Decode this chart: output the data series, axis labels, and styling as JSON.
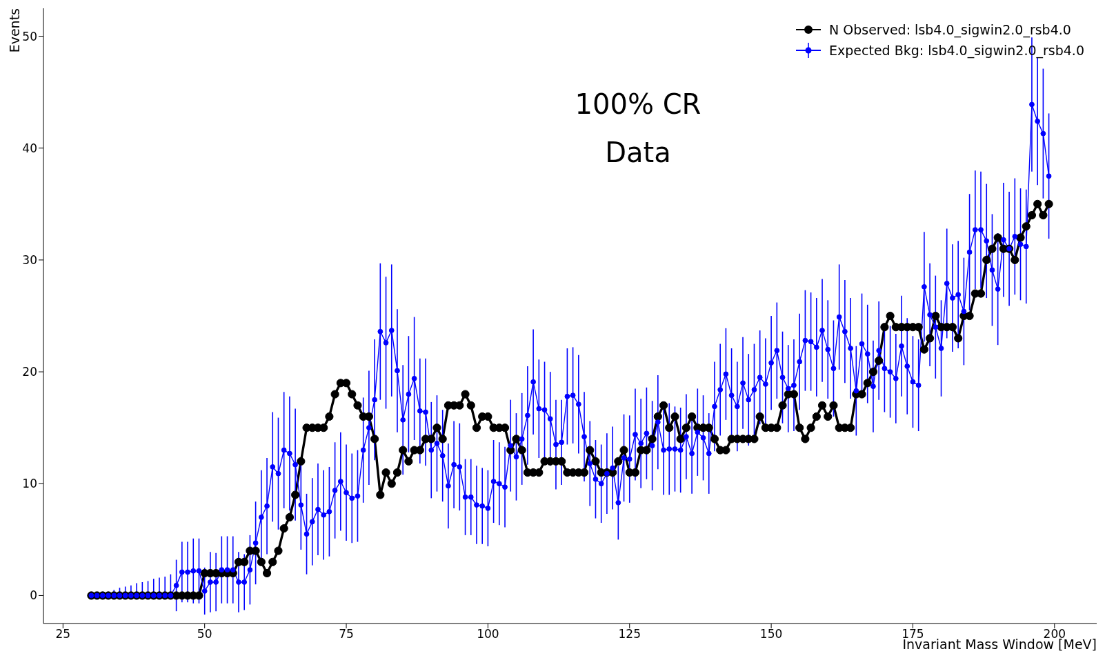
{
  "chart_data": {
    "type": "line",
    "xlabel": "Invariant Mass Window [MeV]",
    "ylabel": "Events",
    "annotations": [
      "100% CR",
      "Data"
    ],
    "x": [
      30,
      31,
      32,
      33,
      34,
      35,
      36,
      37,
      38,
      39,
      40,
      41,
      42,
      43,
      44,
      45,
      46,
      47,
      48,
      49,
      50,
      51,
      52,
      53,
      54,
      55,
      56,
      57,
      58,
      59,
      60,
      61,
      62,
      63,
      64,
      65,
      66,
      67,
      68,
      69,
      70,
      71,
      72,
      73,
      74,
      75,
      76,
      77,
      78,
      79,
      80,
      81,
      82,
      83,
      84,
      85,
      86,
      87,
      88,
      89,
      90,
      91,
      92,
      93,
      94,
      95,
      96,
      97,
      98,
      99,
      100,
      101,
      102,
      103,
      104,
      105,
      106,
      107,
      108,
      109,
      110,
      111,
      112,
      113,
      114,
      115,
      116,
      117,
      118,
      119,
      120,
      121,
      122,
      123,
      124,
      125,
      126,
      127,
      128,
      129,
      130,
      131,
      132,
      133,
      134,
      135,
      136,
      137,
      138,
      139,
      140,
      141,
      142,
      143,
      144,
      145,
      146,
      147,
      148,
      149,
      150,
      151,
      152,
      153,
      154,
      155,
      156,
      157,
      158,
      159,
      160,
      161,
      162,
      163,
      164,
      165,
      166,
      167,
      168,
      169,
      170,
      171,
      172,
      173,
      174,
      175,
      176,
      177,
      178,
      179,
      180,
      181,
      182,
      183,
      184,
      185,
      186,
      187,
      188,
      189,
      190,
      191,
      192,
      193,
      194,
      195,
      196,
      197,
      198,
      199
    ],
    "series": [
      {
        "name": "N Observed: lsb4.0_sigwin2.0_rsb4.0",
        "color": "#000000",
        "values": [
          0,
          0,
          0,
          0,
          0,
          0,
          0,
          0,
          0,
          0,
          0,
          0,
          0,
          0,
          0,
          0,
          0,
          0,
          0,
          0,
          2,
          2,
          2,
          2,
          2,
          2,
          3,
          3,
          4,
          4,
          3,
          2,
          3,
          4,
          6,
          7,
          9,
          12,
          15,
          15,
          15,
          15,
          16,
          18,
          19,
          19,
          18,
          17,
          16,
          16,
          14,
          9,
          11,
          10,
          11,
          13,
          12,
          13,
          13,
          14,
          14,
          15,
          14,
          17,
          17,
          17,
          18,
          17,
          15,
          16,
          16,
          15,
          15,
          15,
          13,
          14,
          13,
          11,
          11,
          11,
          12,
          12,
          12,
          12,
          11,
          11,
          11,
          11,
          13,
          12,
          11,
          11,
          11,
          12,
          13,
          11,
          11,
          13,
          13,
          14,
          16,
          17,
          15,
          16,
          14,
          15,
          16,
          15,
          15,
          15,
          14,
          13,
          13,
          14,
          14,
          14,
          14,
          14,
          16,
          15,
          15,
          15,
          17,
          18,
          18,
          15,
          14,
          15,
          16,
          17,
          16,
          17,
          15,
          15,
          15,
          18,
          18,
          19,
          20,
          21,
          24,
          25,
          24,
          24,
          24,
          24,
          24,
          22,
          23,
          25,
          24,
          24,
          24,
          23,
          25,
          25,
          27,
          27,
          30,
          31,
          32,
          31,
          31,
          30,
          32,
          33,
          34,
          35,
          34,
          35
        ]
      },
      {
        "name": "Expected Bkg: lsb4.0_sigwin2.0_rsb4.0",
        "color": "#0000ff",
        "values": [
          0,
          0,
          0,
          0,
          0,
          0,
          0,
          0,
          0,
          0,
          0,
          0,
          0,
          0,
          0,
          0.9,
          2.1,
          2.1,
          2.2,
          2.2,
          0.4,
          1.2,
          1.2,
          2.3,
          2.3,
          2.3,
          1.2,
          1.2,
          2.3,
          4.7,
          7.0,
          8.0,
          11.5,
          10.9,
          13.0,
          12.7,
          11.7,
          8.1,
          5.5,
          6.6,
          7.7,
          7.2,
          7.5,
          9.4,
          10.2,
          9.2,
          8.7,
          8.9,
          13.0,
          15.0,
          17.5,
          23.6,
          22.6,
          23.7,
          20.1,
          15.7,
          18.0,
          19.4,
          16.5,
          16.4,
          13.0,
          13.6,
          12.5,
          9.8,
          11.7,
          11.5,
          8.8,
          8.8,
          8.1,
          8.0,
          7.8,
          10.2,
          10.0,
          9.7,
          13.4,
          12.4,
          14.0,
          16.1,
          19.1,
          16.7,
          16.6,
          15.8,
          13.5,
          13.7,
          17.8,
          17.9,
          17.1,
          14.2,
          11.8,
          10.4,
          10.0,
          10.9,
          11.4,
          8.3,
          12.3,
          12.2,
          14.4,
          13.6,
          14.5,
          13.4,
          15.5,
          13.0,
          13.1,
          13.1,
          13.0,
          14.2,
          12.7,
          14.6,
          14.1,
          12.7,
          16.9,
          18.4,
          19.8,
          17.9,
          16.9,
          19.0,
          17.5,
          18.4,
          19.5,
          18.9,
          20.8,
          21.9,
          19.5,
          18.5,
          18.8,
          20.9,
          22.8,
          22.7,
          22.2,
          23.7,
          22.0,
          20.3,
          24.9,
          23.6,
          22.1,
          18.3,
          22.5,
          21.6,
          18.7,
          21.9,
          20.3,
          20.0,
          19.4,
          22.3,
          20.5,
          19.1,
          18.8,
          27.6,
          25.1,
          24.0,
          22.1,
          27.9,
          26.6,
          26.9,
          25.4,
          30.7,
          32.7,
          32.7,
          31.7,
          29.1,
          27.4,
          31.8,
          31.0,
          32.1,
          31.4,
          31.2,
          43.9,
          42.4,
          41.3,
          37.5
        ],
        "errors": [
          null,
          null,
          null,
          null,
          [
            0,
            0.5
          ],
          [
            0,
            0.7
          ],
          [
            0,
            0.8
          ],
          [
            0,
            0.9
          ],
          [
            0,
            1.1
          ],
          [
            0,
            1.2
          ],
          [
            0,
            1.3
          ],
          [
            0,
            1.5
          ],
          [
            0,
            1.6
          ],
          [
            0,
            1.7
          ],
          [
            0,
            1.9
          ],
          2.3,
          2.7,
          2.7,
          2.9,
          2.9,
          2.1,
          2.7,
          2.6,
          3.0,
          3.0,
          3.0,
          2.7,
          2.5,
          3.1,
          3.7,
          4.2,
          4.3,
          4.9,
          5.0,
          5.2,
          5.1,
          5.0,
          4.0,
          3.6,
          3.9,
          4.1,
          4.0,
          4.0,
          4.3,
          4.4,
          4.3,
          4.0,
          4.1,
          4.7,
          5.1,
          5.4,
          6.1,
          5.9,
          5.9,
          5.5,
          4.9,
          5.2,
          5.5,
          4.7,
          4.8,
          4.3,
          4.3,
          4.1,
          3.8,
          3.9,
          3.9,
          3.4,
          3.4,
          3.5,
          3.4,
          3.4,
          3.7,
          3.7,
          3.6,
          4.1,
          3.9,
          4.1,
          4.4,
          4.7,
          4.4,
          4.3,
          4.2,
          4.0,
          3.8,
          4.3,
          4.3,
          4.4,
          4.0,
          3.8,
          3.5,
          3.5,
          3.6,
          3.7,
          3.3,
          3.9,
          3.9,
          4.1,
          4.0,
          4.1,
          4.0,
          4.2,
          4.0,
          4.1,
          3.8,
          3.8,
          3.8,
          3.6,
          3.9,
          3.8,
          3.6,
          4.0,
          4.1,
          4.1,
          4.2,
          4.0,
          4.1,
          4.1,
          4.1,
          4.2,
          4.1,
          4.2,
          4.3,
          4.1,
          3.9,
          4.1,
          4.3,
          4.5,
          4.4,
          4.4,
          4.6,
          4.4,
          4.3,
          4.7,
          4.6,
          4.5,
          4.0,
          4.5,
          4.4,
          4.1,
          4.4,
          3.9,
          4.1,
          4.0,
          4.5,
          4.3,
          4.1,
          4.1,
          4.9,
          4.6,
          4.6,
          4.3,
          4.9,
          4.8,
          4.8,
          4.8,
          5.2,
          5.3,
          5.2,
          5.1,
          5.0,
          5.0,
          5.1,
          5.1,
          5.2,
          5.0,
          5.1,
          6.0,
          5.7,
          5.8,
          5.6
        ]
      }
    ],
    "xlim": [
      21.55,
      207.45
    ],
    "xticks": [
      25,
      50,
      75,
      100,
      125,
      150,
      175,
      200
    ],
    "ylim": [
      -2.5,
      52.5
    ],
    "yticks": [
      0,
      10,
      20,
      30,
      40,
      50
    ],
    "grid": false,
    "legend": "top right",
    "marker": "circle",
    "line_style": "solid"
  }
}
